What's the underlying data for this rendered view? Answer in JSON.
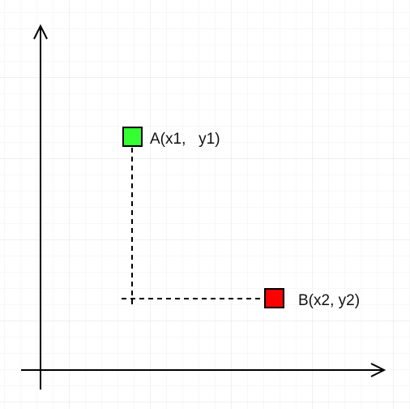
{
  "diagram": {
    "points": [
      {
        "id": "A",
        "label": "A(x1,   y1)",
        "color": "#33ff33"
      },
      {
        "id": "B",
        "label": "B(x2, y2)",
        "color": "#ff0000"
      }
    ],
    "colors": {
      "grid": "#e6e6e6",
      "axis": "#000000",
      "outline": "#000000"
    }
  }
}
